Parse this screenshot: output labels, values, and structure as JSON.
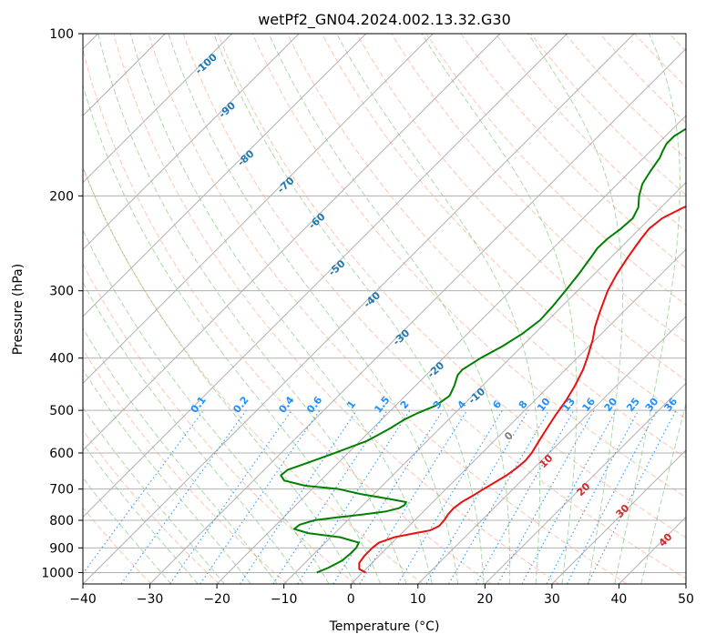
{
  "chart_data": {
    "type": "line",
    "chart_kind": "skew-T log-p",
    "title": "wetPf2_GN04.2024.002.13.32.G30",
    "xlabel": "Temperature (°C)",
    "ylabel": "Pressure (hPa)",
    "xlim": [
      -40,
      50
    ],
    "ylim": [
      1050,
      100
    ],
    "y_scale": "log",
    "x_ticks": [
      "−40",
      "−30",
      "−20",
      "−10",
      "0",
      "10",
      "20",
      "30",
      "40",
      "50"
    ],
    "y_ticks": [
      "100",
      "200",
      "300",
      "400",
      "500",
      "600",
      "700",
      "800",
      "900",
      "1000"
    ],
    "grid": true,
    "colors": {
      "temperature": "#e8110e",
      "dewpoint": "#008000",
      "dry_adiabat": "#ff7f50",
      "moist_adiabat": "#2ca02c",
      "mixing_ratio": "#1e90ff",
      "isotherm": "#808080",
      "dry_label": "#1f77b4",
      "wet_label": "#d62728"
    },
    "series": [
      {
        "name": "temperature",
        "points": [
          [
            1000,
            0.5
          ],
          [
            985,
            -1
          ],
          [
            960,
            -1.9
          ],
          [
            930,
            -2.2
          ],
          [
            900,
            -2.2
          ],
          [
            880,
            -2
          ],
          [
            860,
            -0.5
          ],
          [
            845,
            2
          ],
          [
            835,
            3.8
          ],
          [
            820,
            4.5
          ],
          [
            800,
            4.4
          ],
          [
            780,
            4.1
          ],
          [
            760,
            4
          ],
          [
            740,
            4.3
          ],
          [
            720,
            5
          ],
          [
            700,
            5.6
          ],
          [
            680,
            6.3
          ],
          [
            660,
            7
          ],
          [
            640,
            7.4
          ],
          [
            620,
            7.6
          ],
          [
            600,
            7.4
          ],
          [
            570,
            6.7
          ],
          [
            540,
            6
          ],
          [
            510,
            5.3
          ],
          [
            480,
            4.7
          ],
          [
            450,
            3.8
          ],
          [
            420,
            2.6
          ],
          [
            400,
            1.5
          ],
          [
            370,
            -0.4
          ],
          [
            350,
            -2
          ],
          [
            330,
            -3.4
          ],
          [
            300,
            -5.5
          ],
          [
            280,
            -6.6
          ],
          [
            260,
            -7.5
          ],
          [
            240,
            -8.3
          ],
          [
            230,
            -8.6
          ],
          [
            220,
            -8.2
          ],
          [
            210,
            -6.6
          ],
          [
            200,
            -3.8
          ],
          [
            190,
            -1.4
          ],
          [
            180,
            0.4
          ],
          [
            170,
            1.6
          ],
          [
            160,
            3
          ],
          [
            150,
            4.6
          ],
          [
            140,
            6.6
          ],
          [
            130,
            8.6
          ],
          [
            120,
            10.6
          ],
          [
            110,
            12
          ],
          [
            100,
            13.4
          ]
        ]
      },
      {
        "name": "dewpoint",
        "points": [
          [
            1000,
            -6.8
          ],
          [
            980,
            -5.8
          ],
          [
            950,
            -4.8
          ],
          [
            920,
            -4.6
          ],
          [
            900,
            -4.6
          ],
          [
            880,
            -5
          ],
          [
            860,
            -8.6
          ],
          [
            845,
            -14
          ],
          [
            830,
            -16.7
          ],
          [
            815,
            -16.5
          ],
          [
            800,
            -15
          ],
          [
            790,
            -12
          ],
          [
            780,
            -8.5
          ],
          [
            770,
            -5.6
          ],
          [
            760,
            -4.2
          ],
          [
            750,
            -3.8
          ],
          [
            740,
            -4
          ],
          [
            730,
            -7
          ],
          [
            715,
            -12
          ],
          [
            700,
            -16
          ],
          [
            690,
            -21.5
          ],
          [
            675,
            -25.4
          ],
          [
            660,
            -26.7
          ],
          [
            645,
            -26.5
          ],
          [
            620,
            -24
          ],
          [
            600,
            -22
          ],
          [
            570,
            -19
          ],
          [
            540,
            -17.4
          ],
          [
            520,
            -16.6
          ],
          [
            505,
            -15.5
          ],
          [
            490,
            -14
          ],
          [
            470,
            -13.4
          ],
          [
            450,
            -14.2
          ],
          [
            430,
            -15.3
          ],
          [
            420,
            -15.4
          ],
          [
            400,
            -14.4
          ],
          [
            380,
            -12.9
          ],
          [
            360,
            -11.8
          ],
          [
            340,
            -11.2
          ],
          [
            320,
            -11.4
          ],
          [
            300,
            -11.8
          ],
          [
            280,
            -12.3
          ],
          [
            260,
            -13
          ],
          [
            250,
            -13.4
          ],
          [
            240,
            -13.3
          ],
          [
            230,
            -12.8
          ],
          [
            220,
            -12.6
          ],
          [
            210,
            -13.4
          ],
          [
            200,
            -15
          ],
          [
            190,
            -16.3
          ],
          [
            180,
            -17
          ],
          [
            170,
            -17.6
          ],
          [
            165,
            -18.2
          ],
          [
            160,
            -18.7
          ],
          [
            155,
            -18.7
          ],
          [
            150,
            -18
          ],
          [
            140,
            -17.8
          ],
          [
            130,
            -17.6
          ],
          [
            120,
            -17
          ],
          [
            110,
            -16
          ],
          [
            100,
            -14.8
          ]
        ]
      }
    ],
    "dry_adiabat_labels": [
      "-100",
      "-90",
      "-80",
      "-70",
      "-60",
      "-50",
      "-40",
      "-30",
      "-20",
      "-10"
    ],
    "moist_adiabat_labels": [
      "0",
      "10",
      "20",
      "30",
      "40"
    ],
    "mixing_ratio_labels": [
      "0.1",
      "0.2",
      "0.4",
      "0.6",
      "1",
      "1.5",
      "2",
      "3",
      "4",
      "6",
      "8",
      "10",
      "13",
      "16",
      "20",
      "25",
      "30",
      "36"
    ]
  }
}
